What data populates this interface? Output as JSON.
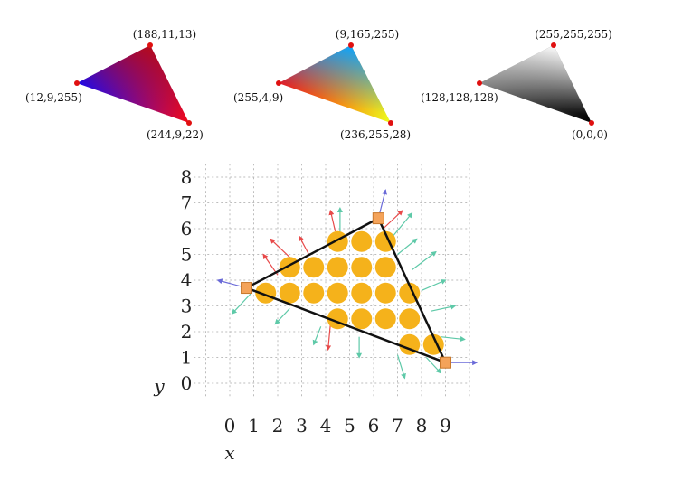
{
  "triangles": [
    {
      "id": "rgb-triangle",
      "vertices": [
        {
          "label": "(188,11,13)",
          "color": "#bc0b0d"
        },
        {
          "label": "(12,9,255)",
          "color": "#0c09ff"
        },
        {
          "label": "(244,9,22)",
          "color": "#f40916"
        }
      ]
    },
    {
      "id": "rainbow-triangle",
      "vertices": [
        {
          "label": "(9,165,255)",
          "color": "#09a5ff"
        },
        {
          "label": "(255,4,9)",
          "color": "#ff0409"
        },
        {
          "label": "(236,255,28)",
          "color": "#ecff1c"
        }
      ]
    },
    {
      "id": "gray-triangle",
      "vertices": [
        {
          "label": "(255,255,255)",
          "color": "#ffffff"
        },
        {
          "label": "(128,128,128)",
          "color": "#808080"
        },
        {
          "label": "(0,0,0)",
          "color": "#000000"
        }
      ]
    }
  ],
  "raster_plot": {
    "x_label": "x",
    "y_label": "y",
    "x_ticks": [
      "0",
      "1",
      "2",
      "3",
      "4",
      "5",
      "6",
      "7",
      "8",
      "9"
    ],
    "y_ticks": [
      "0",
      "1",
      "2",
      "3",
      "4",
      "5",
      "6",
      "7",
      "8"
    ],
    "triangle_vertices": [
      {
        "x": 0.7,
        "y": 3.7
      },
      {
        "x": 6.2,
        "y": 6.4
      },
      {
        "x": 9.0,
        "y": 0.8
      }
    ],
    "covered_pixels": [
      [
        7.5,
        1.5
      ],
      [
        8.5,
        1.5
      ],
      [
        4.5,
        2.5
      ],
      [
        5.5,
        2.5
      ],
      [
        6.5,
        2.5
      ],
      [
        7.5,
        2.5
      ],
      [
        1.5,
        3.5
      ],
      [
        2.5,
        3.5
      ],
      [
        3.5,
        3.5
      ],
      [
        4.5,
        3.5
      ],
      [
        5.5,
        3.5
      ],
      [
        6.5,
        3.5
      ],
      [
        7.5,
        3.5
      ],
      [
        2.5,
        4.5
      ],
      [
        3.5,
        4.5
      ],
      [
        4.5,
        4.5
      ],
      [
        5.5,
        4.5
      ],
      [
        6.5,
        4.5
      ],
      [
        4.5,
        5.5
      ],
      [
        5.5,
        5.5
      ],
      [
        6.5,
        5.5
      ]
    ],
    "colors": {
      "pixel_fill": "#f5b21b",
      "vertex_fill": "#f4a35a",
      "vertex_stroke": "#c8782c",
      "edge": "#111111",
      "grid": "#bdbdbd",
      "normal_red": "#e84a4a",
      "normal_teal": "#5ec9a8",
      "normal_blue": "#6a6ad8"
    }
  }
}
